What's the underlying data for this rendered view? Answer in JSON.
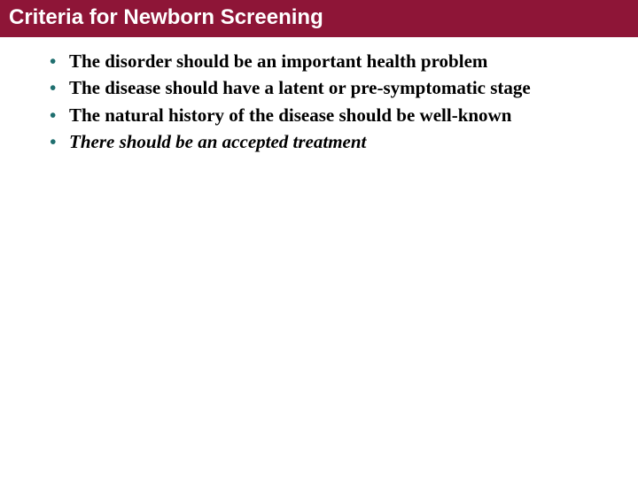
{
  "colors": {
    "title_bg": "#8e1537",
    "title_fg": "#ffffff",
    "bullet_marker": "#1f6f6f",
    "body_text": "#000000",
    "slide_bg": "#ffffff"
  },
  "typography": {
    "title_font": "Arial",
    "title_size_pt": 18,
    "title_weight": "bold",
    "body_font": "Times New Roman",
    "body_size_pt": 16,
    "body_weight": "bold"
  },
  "title": "Criteria for Newborn Screening",
  "bullets": [
    {
      "text": "The disorder should be an important health problem",
      "italic": false
    },
    {
      "text": "The disease should have a latent or pre-symptomatic stage",
      "italic": false
    },
    {
      "text": "The natural history of the disease should be well-known",
      "italic": false
    },
    {
      "text": "There should be an accepted treatment",
      "italic": true
    }
  ]
}
